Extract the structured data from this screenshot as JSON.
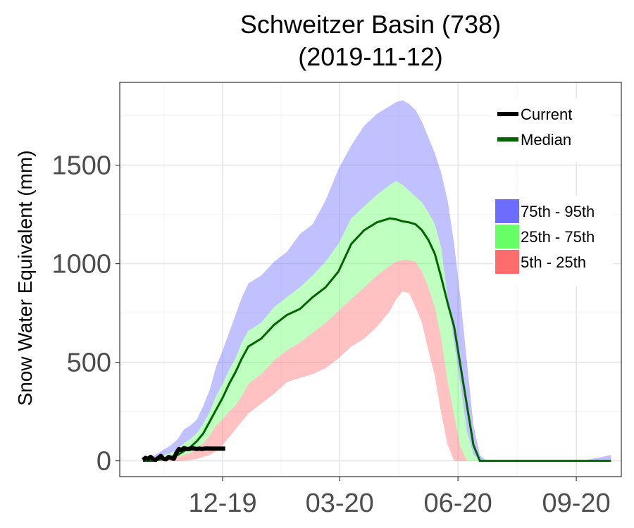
{
  "chart_data": {
    "type": "area",
    "title": "Schweitzer Basin (738)",
    "subtitle": "(2019-11-12)",
    "xlabel": "",
    "ylabel": "Snow Water Equivalent (mm)",
    "x_ticks": [
      "12-19",
      "03-20",
      "06-20",
      "09-20"
    ],
    "x_ticks_day": [
      80,
      171,
      263,
      355
    ],
    "y_ticks": [
      0,
      500,
      1000,
      1500
    ],
    "xlim": [
      0,
      390
    ],
    "ylim": [
      -80,
      1920
    ],
    "grid": true,
    "legend_position": "top-right",
    "colors": {
      "band_75_95": "#6c6cff",
      "band_25_75": "#66ff66",
      "band_5_25": "#ff6c6c",
      "median": "#006400",
      "current": "#000000"
    },
    "legend": {
      "lines": [
        {
          "name": "Current",
          "color": "#000000"
        },
        {
          "name": "Median",
          "color": "#006400"
        }
      ],
      "bands": [
        {
          "name": "75th - 95th",
          "color": "#6c6cff"
        },
        {
          "name": "25th - 75th",
          "color": "#66ff66"
        },
        {
          "name": "5th - 25th",
          "color": "#ff6c6c"
        }
      ]
    },
    "x_unit": "days since Oct 1",
    "x": [
      18,
      25,
      30,
      35,
      40,
      45,
      50,
      55,
      60,
      65,
      70,
      75,
      80,
      85,
      90,
      95,
      100,
      110,
      120,
      130,
      140,
      150,
      160,
      170,
      180,
      190,
      200,
      210,
      215,
      220,
      225,
      230,
      235,
      240,
      245,
      250,
      255,
      260,
      265,
      270,
      275,
      280,
      285,
      290,
      295,
      300,
      310,
      330,
      360,
      382
    ],
    "p95": [
      0,
      20,
      40,
      60,
      80,
      110,
      160,
      180,
      210,
      280,
      360,
      480,
      560,
      650,
      740,
      830,
      900,
      940,
      1010,
      1060,
      1150,
      1200,
      1320,
      1480,
      1600,
      1700,
      1760,
      1800,
      1820,
      1830,
      1810,
      1780,
      1720,
      1640,
      1560,
      1460,
      1320,
      1100,
      820,
      500,
      180,
      30,
      0,
      0,
      0,
      0,
      0,
      0,
      0,
      30
    ],
    "p75": [
      0,
      5,
      20,
      30,
      40,
      60,
      90,
      110,
      140,
      190,
      250,
      330,
      390,
      460,
      520,
      600,
      660,
      700,
      780,
      830,
      880,
      940,
      1010,
      1100,
      1230,
      1290,
      1350,
      1400,
      1420,
      1400,
      1370,
      1340,
      1310,
      1260,
      1200,
      1080,
      820,
      600,
      380,
      150,
      30,
      0,
      0,
      0,
      0,
      0,
      0,
      0,
      0,
      0
    ],
    "p50": [
      0,
      0,
      5,
      10,
      20,
      30,
      50,
      70,
      100,
      140,
      200,
      260,
      320,
      390,
      450,
      520,
      580,
      620,
      690,
      740,
      770,
      830,
      880,
      960,
      1100,
      1170,
      1210,
      1230,
      1225,
      1215,
      1210,
      1200,
      1170,
      1120,
      1050,
      930,
      800,
      680,
      480,
      280,
      80,
      0,
      0,
      0,
      0,
      0,
      0,
      0,
      0,
      0
    ],
    "p25": [
      0,
      0,
      0,
      5,
      10,
      20,
      30,
      40,
      60,
      90,
      130,
      180,
      210,
      250,
      280,
      330,
      390,
      440,
      510,
      560,
      600,
      650,
      700,
      760,
      820,
      880,
      940,
      990,
      1010,
      1020,
      1020,
      1010,
      960,
      880,
      780,
      620,
      400,
      230,
      70,
      0,
      0,
      0,
      0,
      0,
      0,
      0,
      0,
      0,
      0,
      0
    ],
    "p5": [
      0,
      0,
      0,
      0,
      0,
      0,
      0,
      5,
      10,
      20,
      30,
      50,
      80,
      120,
      160,
      200,
      240,
      290,
      340,
      400,
      420,
      440,
      470,
      520,
      580,
      620,
      680,
      760,
      820,
      860,
      850,
      780,
      700,
      560,
      430,
      240,
      80,
      0,
      0,
      0,
      0,
      0,
      0,
      0,
      0,
      0,
      0,
      0,
      0,
      0
    ],
    "current": {
      "x": [
        18,
        20,
        22,
        24,
        26,
        28,
        30,
        32,
        34,
        36,
        38,
        40,
        42,
        44,
        46,
        48,
        50,
        52,
        54,
        56,
        58,
        60,
        62,
        64,
        66,
        68,
        70,
        72,
        74,
        76,
        78,
        80,
        82
      ],
      "y": [
        5,
        15,
        10,
        20,
        8,
        5,
        15,
        25,
        10,
        8,
        20,
        15,
        10,
        40,
        60,
        55,
        65,
        60,
        60,
        65,
        62,
        60,
        62,
        60,
        62,
        63,
        62,
        62,
        62,
        62,
        62,
        62,
        62
      ]
    }
  }
}
